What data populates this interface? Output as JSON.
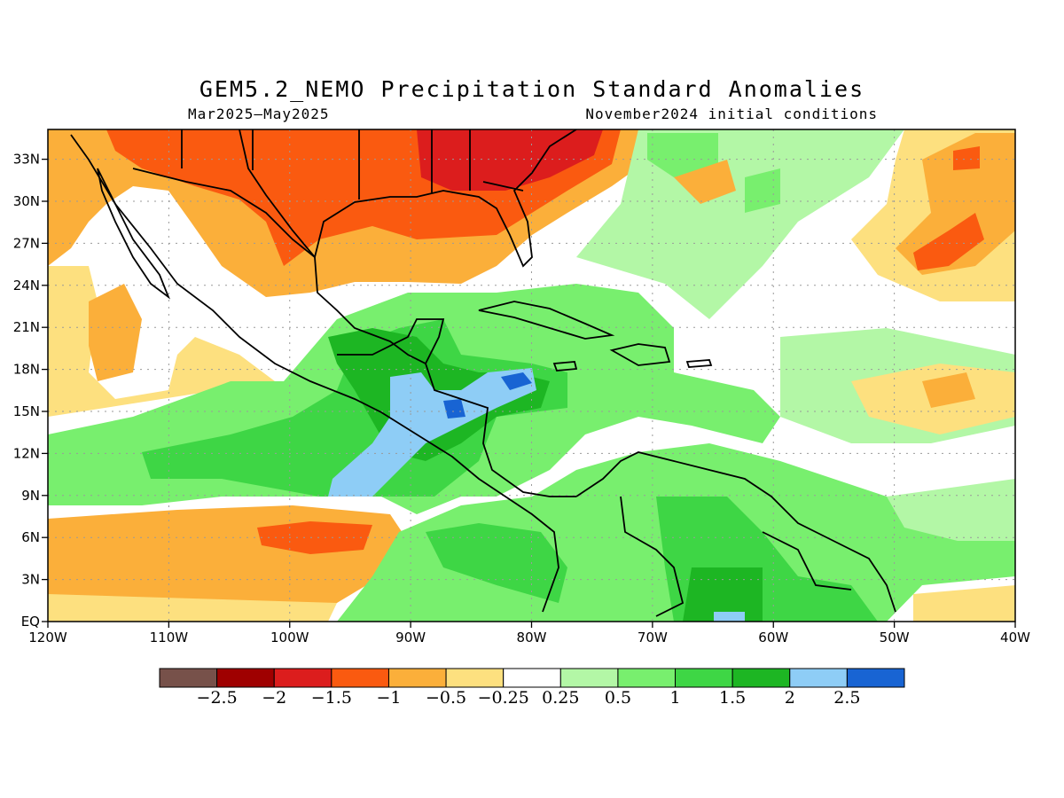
{
  "title": "GEM5.2_NEMO Precipitation Standard Anomalies",
  "period": "Mar2025–May2025",
  "init": "November2024 initial conditions",
  "lon_labels": [
    "120W",
    "110W",
    "100W",
    "90W",
    "80W",
    "70W",
    "60W",
    "50W",
    "40W"
  ],
  "lat_labels": [
    "EQ",
    "3N",
    "6N",
    "9N",
    "12N",
    "15N",
    "18N",
    "21N",
    "24N",
    "27N",
    "30N",
    "33N"
  ],
  "colorbar": {
    "colors": [
      "#77514a",
      "#9f0000",
      "#dc1d1d",
      "#fa5a10",
      "#fbaf3a",
      "#fde07f",
      "#ffffff",
      "#b3f7a6",
      "#78ef6e",
      "#3ed645",
      "#1db623",
      "#8ecdf6",
      "#1864d3"
    ],
    "labels": [
      "−2.5",
      "−2",
      "−1.5",
      "−1",
      "−0.5",
      "−0.25",
      "0.25",
      "0.5",
      "1",
      "1.5",
      "2",
      "2.5"
    ]
  }
}
